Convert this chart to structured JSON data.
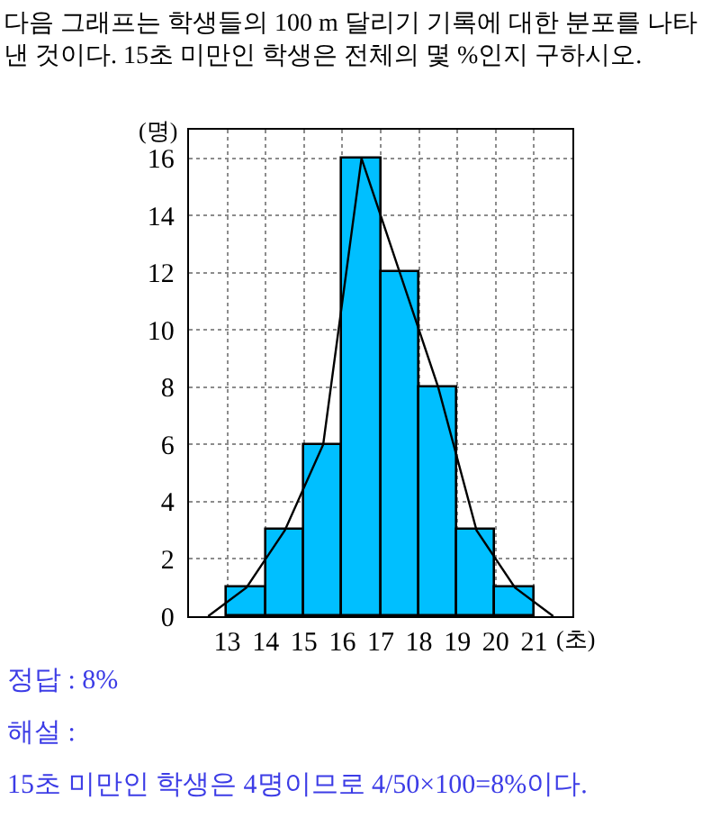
{
  "chart_data": {
    "type": "histogram",
    "title": "다음 그래프는 학생들의 100 m 달리기 기록에 대한 분포를 나타낸 것이다. 15초 미만인 학생은 전체의 몇 %인지 구하시오.",
    "xlabel": "(초)",
    "ylabel": "(명)",
    "bins": [
      13,
      14,
      15,
      16,
      17,
      18,
      19,
      20,
      21
    ],
    "values": [
      1,
      3,
      6,
      16,
      12,
      8,
      3,
      1
    ],
    "color": "#00bfff",
    "series": [
      {
        "type": "line",
        "x": [
          12.5,
          13.5,
          14.5,
          15.5,
          16.5,
          17.5,
          18.5,
          19.5,
          20.5,
          21.5
        ],
        "values": [
          0,
          1,
          3,
          6,
          16,
          12,
          8,
          3,
          1,
          0
        ],
        "color": "#000000"
      }
    ],
    "xlim": [
      12,
      22
    ],
    "ylim": [
      0,
      17
    ],
    "xticks": [
      13,
      14,
      15,
      16,
      17,
      18,
      19,
      20,
      21
    ],
    "yticks": [
      0,
      2,
      4,
      6,
      8,
      10,
      12,
      14,
      16
    ],
    "grid": true,
    "annotations": [
      "정답 : 8%",
      "해설 :",
      "15초 미만인 학생은 4명이므로 4/50×100=8%이다."
    ]
  }
}
